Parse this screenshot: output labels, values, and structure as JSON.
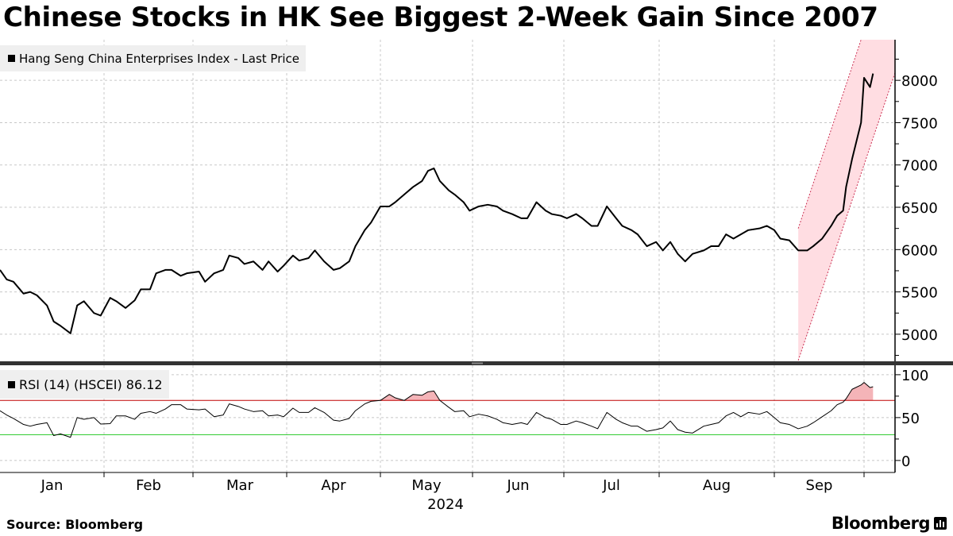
{
  "title": "Chinese Stocks in HK See Biggest 2-Week Gain Since 2007",
  "source": "Source: Bloomberg",
  "logo": "Bloomberg",
  "colors": {
    "price_line": "#000000",
    "rsi_line": "#000000",
    "overbought": "#c00000",
    "oversold": "#33cc33",
    "channel_fill": "#ffdde2",
    "channel_edge": "#cc3355",
    "rsi_overbought_fill": "#f4b4b8"
  },
  "chart_data": [
    {
      "type": "line",
      "title": "",
      "legend": "Hang Seng China Enterprises Index - Last Price",
      "legend_placement": "top-left",
      "ylim": [
        4680,
        8480
      ],
      "yticks": [
        5000,
        5500,
        6000,
        6500,
        7000,
        7500,
        8000
      ],
      "grid": true,
      "channel": {
        "upper": [
          [
            "2024-09-09",
            6250
          ],
          [
            "2024-09-30",
            8480
          ]
        ],
        "lower": [
          [
            "2024-09-09",
            4690
          ],
          [
            "2024-10-11",
            8055
          ]
        ]
      },
      "x": [
        "2024-01-01",
        "2024-01-03",
        "2024-01-05",
        "2024-01-08",
        "2024-01-10",
        "2024-01-12",
        "2024-01-15",
        "2024-01-17",
        "2024-01-19",
        "2024-01-22",
        "2024-01-24",
        "2024-01-26",
        "2024-01-29",
        "2024-01-31",
        "2024-02-03",
        "2024-02-05",
        "2024-02-08",
        "2024-02-11",
        "2024-02-13",
        "2024-02-16",
        "2024-02-18",
        "2024-02-21",
        "2024-02-23",
        "2024-02-26",
        "2024-02-28",
        "2024-03-03",
        "2024-03-05",
        "2024-03-08",
        "2024-03-11",
        "2024-03-13",
        "2024-03-16",
        "2024-03-18",
        "2024-03-21",
        "2024-03-24",
        "2024-03-26",
        "2024-03-29",
        "2024-03-31",
        "2024-04-03",
        "2024-04-05",
        "2024-04-08",
        "2024-04-10",
        "2024-04-13",
        "2024-04-16",
        "2024-04-18",
        "2024-04-21",
        "2024-04-23",
        "2024-04-26",
        "2024-04-28",
        "2024-05-01",
        "2024-05-04",
        "2024-05-06",
        "2024-05-09",
        "2024-05-12",
        "2024-05-15",
        "2024-05-17",
        "2024-05-19",
        "2024-05-21",
        "2024-05-24",
        "2024-05-26",
        "2024-05-29",
        "2024-05-31",
        "2024-06-03",
        "2024-06-06",
        "2024-06-09",
        "2024-06-11",
        "2024-06-14",
        "2024-06-17",
        "2024-06-19",
        "2024-06-22",
        "2024-06-25",
        "2024-06-27",
        "2024-06-30",
        "2024-07-02",
        "2024-07-05",
        "2024-07-07",
        "2024-07-10",
        "2024-07-12",
        "2024-07-15",
        "2024-07-18",
        "2024-07-20",
        "2024-07-23",
        "2024-07-25",
        "2024-07-28",
        "2024-07-31",
        "2024-08-02",
        "2024-08-04",
        "2024-08-06",
        "2024-08-08",
        "2024-08-10",
        "2024-08-13",
        "2024-08-15",
        "2024-08-17",
        "2024-08-19",
        "2024-08-21",
        "2024-08-23",
        "2024-08-25",
        "2024-08-28",
        "2024-08-30",
        "2024-09-01",
        "2024-09-03",
        "2024-09-06",
        "2024-09-09",
        "2024-09-12",
        "2024-09-14",
        "2024-09-17",
        "2024-09-20",
        "2024-09-22",
        "2024-09-24",
        "2024-09-25",
        "2024-09-27",
        "2024-09-30",
        "2024-10-01",
        "2024-10-03",
        "2024-10-04"
      ],
      "values": [
        5760,
        5647,
        5620,
        5480,
        5500,
        5460,
        5340,
        5150,
        5100,
        5010,
        5340,
        5390,
        5250,
        5220,
        5430,
        5390,
        5310,
        5400,
        5530,
        5530,
        5720,
        5760,
        5760,
        5690,
        5720,
        5740,
        5620,
        5720,
        5760,
        5930,
        5900,
        5830,
        5860,
        5760,
        5860,
        5740,
        5810,
        5930,
        5870,
        5900,
        5990,
        5860,
        5760,
        5780,
        5860,
        6040,
        6230,
        6320,
        6510,
        6510,
        6560,
        6650,
        6740,
        6810,
        6930,
        6960,
        6810,
        6700,
        6650,
        6560,
        6460,
        6510,
        6530,
        6510,
        6460,
        6420,
        6370,
        6370,
        6560,
        6460,
        6420,
        6400,
        6370,
        6420,
        6370,
        6280,
        6280,
        6510,
        6370,
        6280,
        6230,
        6180,
        6040,
        6090,
        5990,
        6090,
        5950,
        5860,
        5950,
        5990,
        6040,
        6040,
        6180,
        6130,
        6180,
        6230,
        6250,
        6280,
        6230,
        6130,
        6110,
        5990,
        5990,
        6040,
        6130,
        6280,
        6400,
        6460,
        6740,
        7070,
        7500,
        8030,
        7920,
        8080
      ]
    },
    {
      "type": "line",
      "title": "",
      "legend": "RSI (14) (HSCEI) 86.12",
      "legend_placement": "top-left",
      "ylim": [
        -14,
        111
      ],
      "yticks": [
        0,
        50,
        100
      ],
      "overbought": 70,
      "oversold": 30,
      "grid": true,
      "values": [
        58,
        53,
        49,
        42,
        40,
        42,
        44,
        29,
        31,
        27,
        50,
        48,
        50,
        42.5,
        43,
        52,
        52,
        48,
        55,
        57,
        55,
        60,
        65,
        65,
        60,
        59,
        60,
        51,
        53,
        66,
        63,
        60,
        57,
        58,
        52,
        53,
        51,
        61,
        56,
        56,
        61.5,
        56,
        47,
        46,
        49,
        58,
        66,
        69,
        70,
        77,
        73,
        70,
        77,
        76,
        80,
        81,
        70,
        62,
        57,
        58,
        51,
        54,
        52,
        48,
        44,
        42,
        44,
        42,
        56,
        50,
        48,
        42,
        42,
        46,
        44,
        40,
        37,
        56,
        48,
        44,
        40,
        40,
        34,
        36,
        38,
        46,
        36,
        33,
        32,
        40,
        42,
        44,
        52,
        56,
        51,
        56,
        54,
        57,
        50,
        44,
        42,
        37,
        40,
        44,
        51,
        58,
        65,
        68,
        72,
        83,
        88,
        91,
        85,
        86
      ]
    }
  ],
  "x_axis": {
    "months": [
      "Jan",
      "Feb",
      "Mar",
      "Apr",
      "May",
      "Jun",
      "Jul",
      "Aug",
      "Sep"
    ],
    "year": "2024"
  }
}
